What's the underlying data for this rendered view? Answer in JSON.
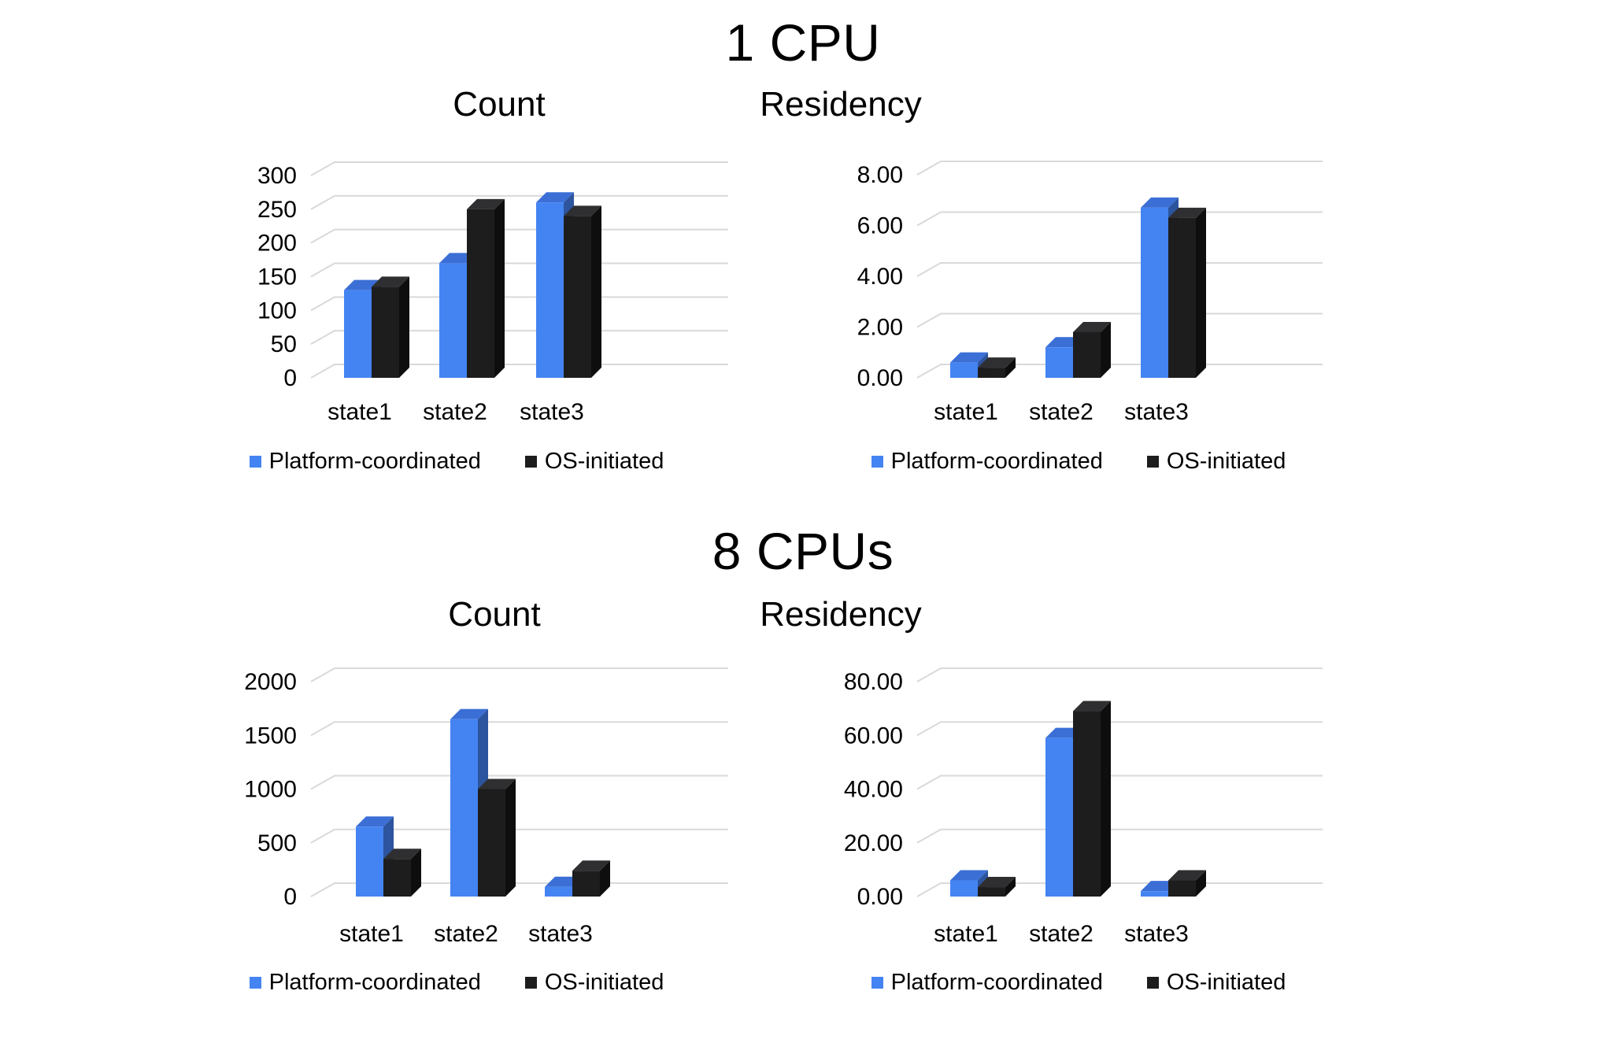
{
  "page": {
    "background": "#ffffff"
  },
  "sections": [
    {
      "title": "1 CPU"
    },
    {
      "title": "8 CPUs"
    }
  ],
  "colors": {
    "platform": {
      "front": "#4484f2",
      "top": "#3b6fd6",
      "side": "#2d549e"
    },
    "os": {
      "front": "#1d1d1e",
      "top": "#2f2f31",
      "side": "#0e0e0f"
    },
    "gridline": "#d9d9d9",
    "text": "#000000",
    "background": "#ffffff"
  },
  "chart_data": [
    {
      "type": "bar",
      "style": "3d-column",
      "section": "1 CPU",
      "title": "Count",
      "categories": [
        "state1",
        "state2",
        "state3"
      ],
      "series": [
        {
          "name": "Platform-coordinated",
          "color_key": "platform",
          "values": [
            130,
            170,
            260
          ]
        },
        {
          "name": "OS-initiated",
          "color_key": "os",
          "values": [
            135,
            250,
            240
          ]
        }
      ],
      "ylim": [
        0,
        300
      ],
      "yticks": [
        "0",
        "50",
        "100",
        "150",
        "200",
        "250",
        "300"
      ],
      "grid": true,
      "legend_position": "bottom"
    },
    {
      "type": "bar",
      "style": "3d-column",
      "section": "1 CPU",
      "title": "Residency",
      "categories": [
        "state1",
        "state2",
        "state3"
      ],
      "series": [
        {
          "name": "Platform-coordinated",
          "color_key": "platform",
          "values": [
            0.6,
            1.2,
            6.7
          ]
        },
        {
          "name": "OS-initiated",
          "color_key": "os",
          "values": [
            0.4,
            1.8,
            6.3
          ]
        }
      ],
      "ylim": [
        0,
        8
      ],
      "yticks": [
        "0.00",
        "2.00",
        "4.00",
        "6.00",
        "8.00"
      ],
      "grid": true,
      "legend_position": "bottom"
    },
    {
      "type": "bar",
      "style": "3d-column",
      "section": "8 CPUs",
      "title": "Count",
      "categories": [
        "state1",
        "state2",
        "state3"
      ],
      "series": [
        {
          "name": "Platform-coordinated",
          "color_key": "platform",
          "values": [
            650,
            1650,
            90
          ]
        },
        {
          "name": "OS-initiated",
          "color_key": "os",
          "values": [
            350,
            1000,
            240
          ]
        }
      ],
      "ylim": [
        0,
        2000
      ],
      "yticks": [
        "0",
        "500",
        "1000",
        "1500",
        "2000"
      ],
      "grid": true,
      "legend_position": "bottom"
    },
    {
      "type": "bar",
      "style": "3d-column",
      "section": "8 CPUs",
      "title": "Residency",
      "categories": [
        "state1",
        "state2",
        "state3"
      ],
      "series": [
        {
          "name": "Platform-coordinated",
          "color_key": "platform",
          "values": [
            6,
            59,
            2
          ]
        },
        {
          "name": "OS-initiated",
          "color_key": "os",
          "values": [
            3.5,
            69,
            6
          ]
        }
      ],
      "ylim": [
        0,
        80
      ],
      "yticks": [
        "0.00",
        "20.00",
        "40.00",
        "60.00",
        "80.00"
      ],
      "grid": true,
      "legend_position": "bottom"
    }
  ]
}
